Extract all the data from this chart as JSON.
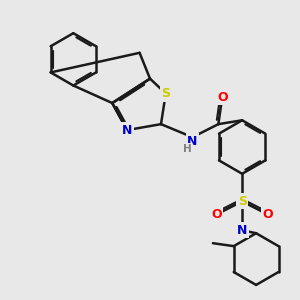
{
  "bg_color": "#e8e8e8",
  "bond_color": "#1a1a1a",
  "bond_lw": 1.8,
  "atom_colors": {
    "N": "#0000cc",
    "S": "#cccc00",
    "O": "#ff0000",
    "H": "#808080"
  },
  "font_size": 8.5
}
